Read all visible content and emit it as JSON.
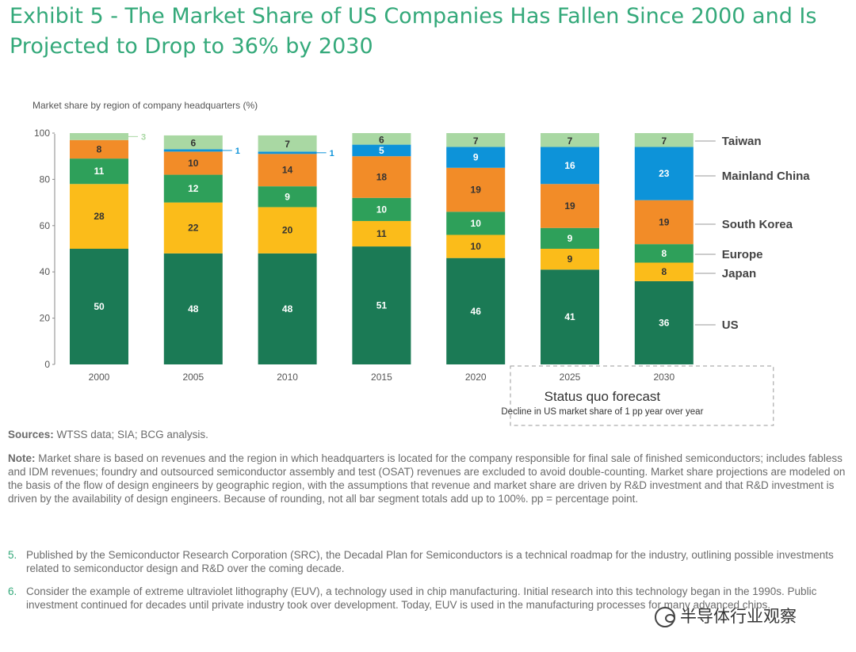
{
  "title": "Exhibit 5 - The Market Share of US Companies Has Fallen Since 2000 and Is Projected to Drop to 36% by 2030",
  "chart_data": {
    "type": "bar",
    "stacked": true,
    "ylabel": "Market share by region of company headquarters (%)",
    "ylim": [
      0,
      100
    ],
    "yticks": [
      "0",
      "20",
      "40",
      "60",
      "80",
      "100"
    ],
    "categories": [
      "2000",
      "2005",
      "2010",
      "2015",
      "2020",
      "2025",
      "2030"
    ],
    "series": [
      {
        "name": "US",
        "color": "#1b7a55",
        "values": [
          50,
          48,
          48,
          51,
          46,
          41,
          36
        ]
      },
      {
        "name": "Japan",
        "color": "#fbbc1a",
        "values": [
          28,
          22,
          20,
          11,
          10,
          9,
          8
        ]
      },
      {
        "name": "Europe",
        "color": "#2ea05a",
        "values": [
          11,
          12,
          9,
          10,
          10,
          9,
          8
        ]
      },
      {
        "name": "South Korea",
        "color": "#f28c28",
        "values": [
          8,
          10,
          14,
          18,
          19,
          19,
          19
        ]
      },
      {
        "name": "Mainland China",
        "color": "#0d93d9",
        "values": [
          0,
          1,
          1,
          5,
          9,
          16,
          23
        ]
      },
      {
        "name": "Taiwan",
        "color": "#a9d8a3",
        "values": [
          3,
          6,
          7,
          6,
          7,
          7,
          7
        ]
      }
    ],
    "forecast_box": {
      "title": "Status quo forecast",
      "subtitle": "Decline in US market share of 1 pp year over year",
      "categories": [
        "2025",
        "2030"
      ]
    }
  },
  "sources": {
    "label": "Sources:",
    "text": " WTSS data; SIA; BCG analysis."
  },
  "note": {
    "label": "Note:",
    "text": " Market share is based on revenues and the region in which headquarters is located for the company responsible for final sale of finished semiconductors; includes fabless and IDM revenues; foundry and outsourced semiconductor assembly and test (OSAT) revenues are excluded to avoid double-counting. Market share projections are modeled on the basis of the flow of design engineers by geographic region, with the assumptions that revenue and market share are driven by R&D investment and that R&D investment is driven by the availability of design engineers. Because of rounding, not all bar segment totals add up to 100%. pp = percentage point."
  },
  "footnotes": [
    {
      "num": "5.",
      "text": "Published by the Semiconductor Research Corporation (SRC), the Decadal Plan for Semiconductors is a technical roadmap for the industry, outlining possible investments related to semiconductor design and R&D over the coming decade."
    },
    {
      "num": "6.",
      "text": "Consider the example of extreme ultraviolet lithography (EUV), a technology used in chip manufacturing. Initial research into this technology began in the 1990s. Public investment continued for decades until private industry took over development. Today, EUV is used in the manufacturing processes for many advanced chips."
    }
  ],
  "watermark": "半导体行业观察"
}
